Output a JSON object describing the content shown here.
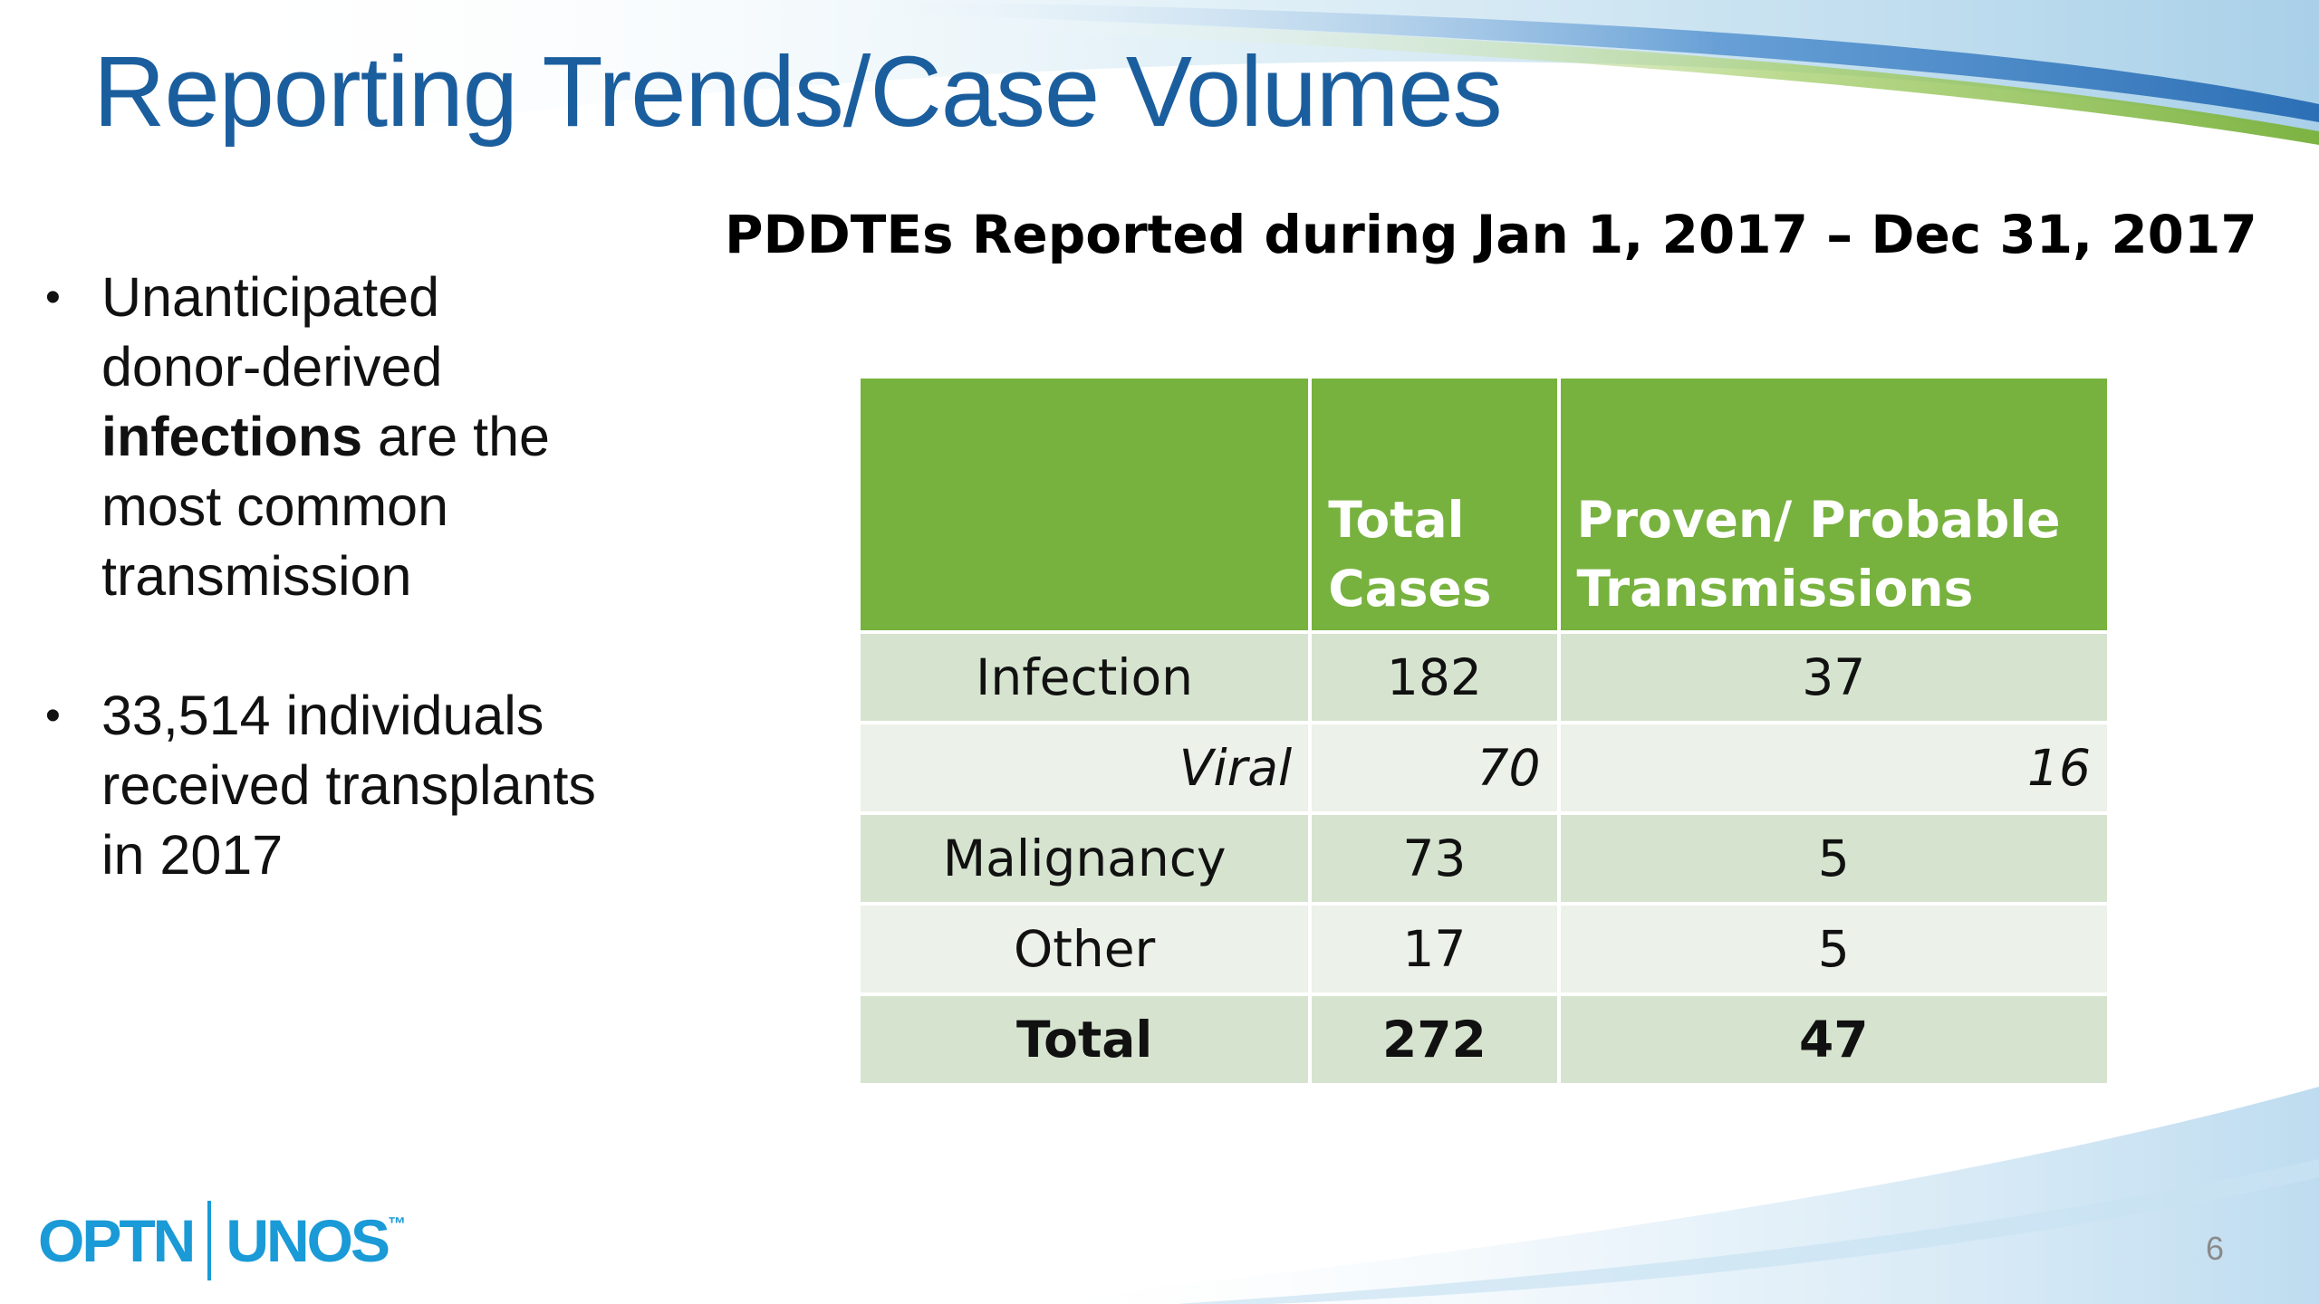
{
  "slide": {
    "title": "Reporting Trends/Case Volumes",
    "page_number": "6",
    "colors": {
      "title": "#1b5e9e",
      "header": "#77b23f",
      "row_dark": "#d6e4cf",
      "row_light": "#ecf1e9",
      "logo": "#1a9ad6"
    }
  },
  "bullets": [
    {
      "pre": "Unanticipated donor-derived ",
      "bold": "infections",
      "post": " are the most common transmission"
    },
    {
      "text": "33,514 individuals received transplants in 2017"
    }
  ],
  "table": {
    "caption": "PDDTEs Reported during Jan 1, 2017 – Dec 31, 2017",
    "headers": [
      "",
      "Total Cases",
      "Proven/ Probable Transmissions"
    ],
    "rows": [
      [
        "Infection",
        "182",
        "37"
      ],
      [
        "Viral",
        "70",
        "16"
      ],
      [
        "Malignancy",
        "73",
        "5"
      ],
      [
        "Other",
        "17",
        "5"
      ],
      [
        "Total",
        "272",
        "47"
      ]
    ]
  },
  "logo": {
    "left": "OPTN",
    "right": "UNOS",
    "mark": "™"
  }
}
